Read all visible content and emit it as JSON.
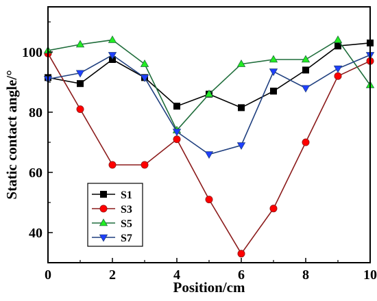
{
  "chart_data": {
    "type": "line",
    "xlabel": "Position/cm",
    "ylabel": "Static contact angle/°",
    "xlim": [
      0,
      10
    ],
    "ylim": [
      30,
      115
    ],
    "xticks": [
      0,
      2,
      4,
      6,
      8,
      10
    ],
    "yticks": [
      40,
      60,
      80,
      100
    ],
    "grid": false,
    "legend_position": "bottom-left",
    "x": [
      0,
      1,
      2,
      3,
      4,
      5,
      6,
      7,
      8,
      9,
      10
    ],
    "series": [
      {
        "name": "S1",
        "color": "#000000",
        "marker": "square",
        "values": [
          91.5,
          89.5,
          97.5,
          91.5,
          82.0,
          86.0,
          81.5,
          87.0,
          94.0,
          102.0,
          103.0
        ]
      },
      {
        "name": "S3",
        "color": "#8b1a1a",
        "marker_color": "#ff0000",
        "marker": "circle",
        "values": [
          99.5,
          81.0,
          62.5,
          62.5,
          71.0,
          51.0,
          33.0,
          48.0,
          70.0,
          92.0,
          97.0
        ]
      },
      {
        "name": "S5",
        "color": "#1f6d3b",
        "marker_color": "#22ee22",
        "marker": "triangle-up",
        "values": [
          100.5,
          102.5,
          104.0,
          96.0,
          74.0,
          86.0,
          96.0,
          97.5,
          97.5,
          104.0,
          89.0
        ]
      },
      {
        "name": "S7",
        "color": "#1f3f7f",
        "marker_color": "#1f3fff",
        "marker": "triangle-down",
        "values": [
          91.0,
          93.0,
          99.0,
          91.5,
          73.5,
          66.0,
          69.0,
          93.5,
          88.0,
          94.5,
          99.0
        ]
      }
    ]
  }
}
